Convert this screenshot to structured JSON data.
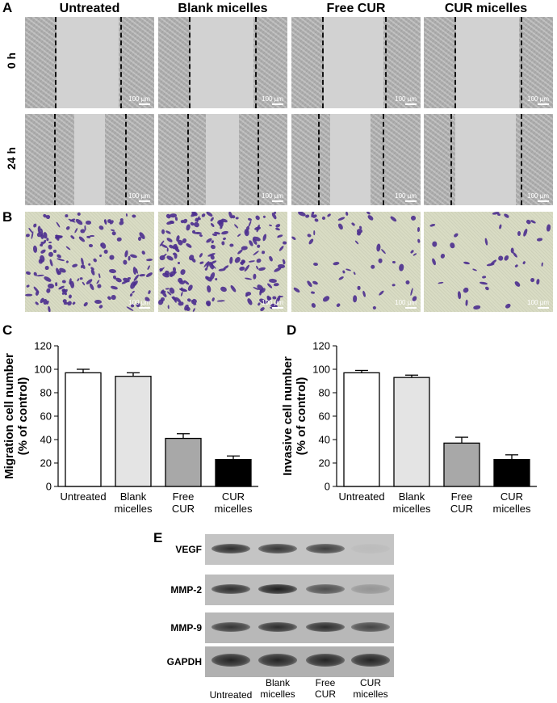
{
  "panel_letters": {
    "a": "A",
    "b": "B",
    "c": "C",
    "d": "D",
    "e": "E"
  },
  "groups": [
    "Untreated",
    "Blank micelles",
    "Free CUR",
    "CUR micelles"
  ],
  "row_labels": {
    "t0": "0 h",
    "t24": "24 h"
  },
  "scale_bar_label": "100 µm",
  "chart_data": [
    {
      "type": "bar",
      "panel": "C",
      "categories": [
        "Untreated",
        "Blank\nmicelles",
        "Free\nCUR",
        "CUR\nmicelles"
      ],
      "values": [
        97,
        94,
        41,
        23
      ],
      "errors": [
        3,
        3,
        4,
        3
      ],
      "ylabel": "Migration cell number\n(% of control)",
      "ylim": [
        0,
        120
      ],
      "yticks": [
        0,
        20,
        40,
        60,
        80,
        100,
        120
      ],
      "bar_colors": [
        "#ffffff",
        "#e4e4e4",
        "#a8a8a8",
        "#000000"
      ]
    },
    {
      "type": "bar",
      "panel": "D",
      "categories": [
        "Untreated",
        "Blank\nmicelles",
        "Free\nCUR",
        "CUR\nmicelles"
      ],
      "values": [
        97,
        93,
        37,
        23
      ],
      "errors": [
        2,
        2,
        5,
        4
      ],
      "ylabel": "Invasive cell number\n(% of control)",
      "ylim": [
        0,
        120
      ],
      "yticks": [
        0,
        20,
        40,
        60,
        80,
        100,
        120
      ],
      "bar_colors": [
        "#ffffff",
        "#e4e4e4",
        "#a8a8a8",
        "#000000"
      ]
    }
  ],
  "western_blot": {
    "proteins": [
      "VEGF",
      "MMP-2",
      "MMP-9",
      "GAPDH"
    ],
    "lane_labels": [
      "Untreated",
      "Blank\nmicelles",
      "Free\nCUR",
      "CUR\nmicelles"
    ],
    "band_intensity": [
      [
        0.9,
        0.85,
        0.8,
        0.05
      ],
      [
        0.9,
        1.0,
        0.7,
        0.25
      ],
      [
        0.85,
        0.9,
        0.9,
        0.75
      ],
      [
        0.95,
        0.95,
        0.95,
        0.95
      ]
    ]
  }
}
